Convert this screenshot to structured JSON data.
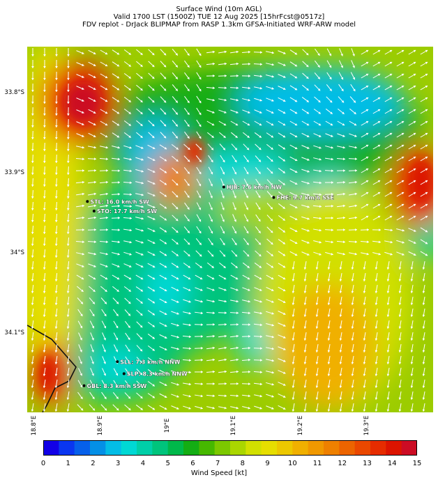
{
  "title_lines": [
    "Surface Wind (10m AGL)",
    "Valid 1700 LST (1500Z) TUE 12 Aug 2025 [15hrFcst@0517z]",
    "FDV replot - DrJack BLIPMAP from RASP 1.3km GFSA-Initiated WRF-ARW model"
  ],
  "lat_labels": [
    "33.8°S",
    "33.9°S",
    "34°S",
    "34.1°S"
  ],
  "lon_labels": [
    "18.8°E",
    "18.9°E",
    "19°E",
    "19.1°E",
    "19.2°E",
    "19.3°E"
  ],
  "stations": [
    {
      "label": "HJB: 7.6 km/h NW",
      "lon": 19.085,
      "lat": -33.917
    },
    {
      "label": "FHE: 9.7 km/h SSE",
      "lon": 19.16,
      "lat": -33.93
    },
    {
      "label": "STL: 16.0 km/h SW",
      "lon": 18.88,
      "lat": -33.935
    },
    {
      "label": "STO: 17.7 km/h SW",
      "lon": 18.89,
      "lat": -33.947
    },
    {
      "label": "SLL: 7.3 km/h NNW",
      "lon": 18.925,
      "lat": -34.135
    },
    {
      "label": "SLP: 8.3 km/h NNW",
      "lon": 18.935,
      "lat": -34.15
    },
    {
      "label": "GBL: 8.3 km/h SSW",
      "lon": 18.875,
      "lat": -34.165
    }
  ],
  "colorbar": {
    "ticks": [
      "0",
      "1",
      "2",
      "3",
      "4",
      "5",
      "6",
      "7",
      "8",
      "9",
      "10",
      "11",
      "12",
      "13",
      "14",
      "15"
    ],
    "label": "Wind Speed [kt]",
    "colors": [
      "#1200e6",
      "#0a36f0",
      "#0660ea",
      "#0490e6",
      "#03bde6",
      "#00d8d4",
      "#00cfa8",
      "#00c47c",
      "#00b84a",
      "#14ad14",
      "#46b800",
      "#7cc800",
      "#aad600",
      "#d2e000",
      "#e6de00",
      "#ecc800",
      "#f0b000",
      "#f09800",
      "#ee8000",
      "#ec6400",
      "#ea4800",
      "#e62c00",
      "#dc1400",
      "#cc0c24"
    ]
  }
}
